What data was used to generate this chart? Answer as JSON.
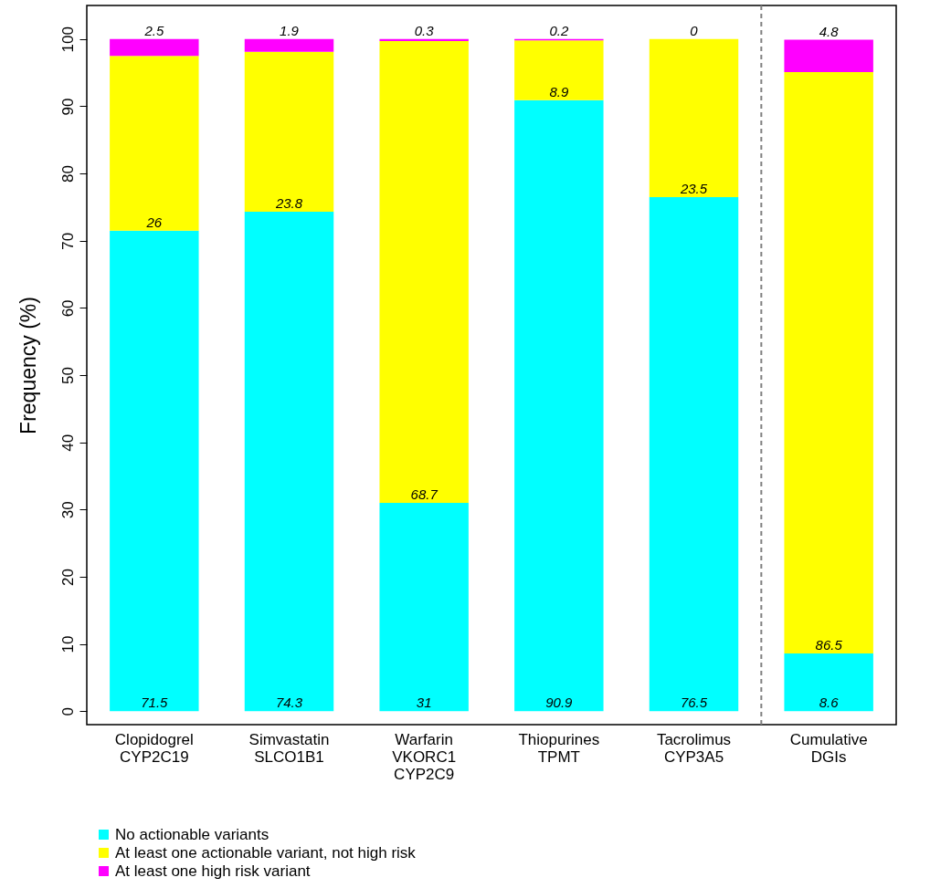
{
  "chart_data": {
    "type": "bar",
    "stacked": true,
    "ylabel": "Frequency (%)",
    "categories": [
      "Clopidogrel\nCYP2C19",
      "Simvastatin\nSLCO1B1",
      "Warfarin\nVKORC1\nCYP2C9",
      "Thiopurines\nTPMT",
      "Tacrolimus\nCYP3A5",
      "Cumulative\nDGIs"
    ],
    "series": [
      {
        "name": "No actionable variants",
        "color": "#00ffff",
        "values": [
          71.5,
          74.3,
          31,
          90.9,
          76.5,
          8.6
        ]
      },
      {
        "name": "At least one actionable variant, not high risk",
        "color": "#ffff00",
        "values": [
          26,
          23.8,
          68.7,
          8.9,
          23.5,
          86.5
        ]
      },
      {
        "name": "At least one high risk variant",
        "color": "#ff00ff",
        "values": [
          2.5,
          1.9,
          0.3,
          0.2,
          0,
          4.8
        ]
      }
    ],
    "ylim": [
      -2,
      105
    ],
    "yticks": [
      0,
      10,
      20,
      30,
      40,
      50,
      60,
      70,
      80,
      90,
      100
    ],
    "data_labels": true,
    "grid": false,
    "legend": "bottom left"
  }
}
